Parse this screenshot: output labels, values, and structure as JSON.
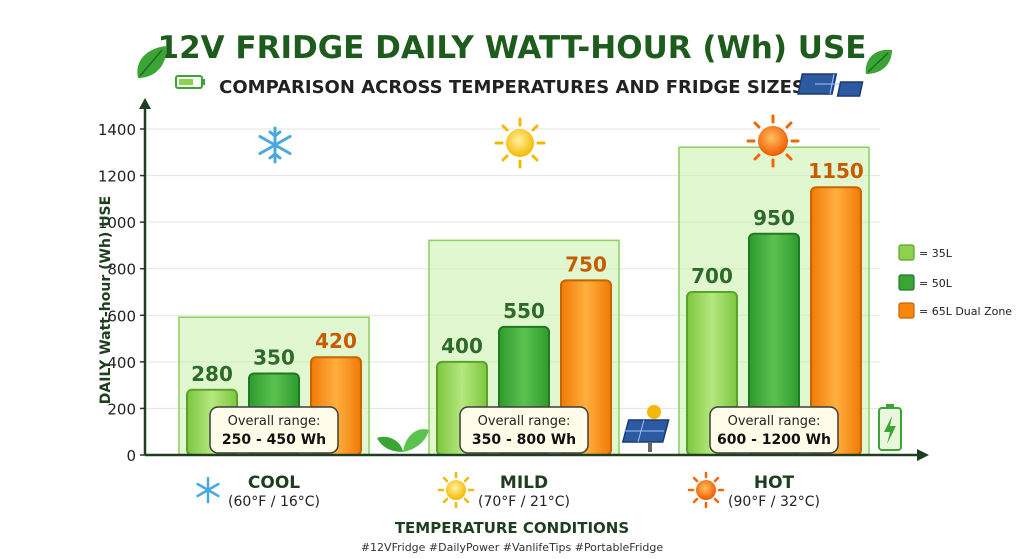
{
  "chart_data": {
    "type": "bar",
    "title": "12V FRIDGE DAILY WATT-HOUR (Wh) USE",
    "subtitle": "COMPARISON ACROSS TEMPERATURES AND FRIDGE SIZES",
    "ylabel": "DAILY Watt-hour (Wh) USE",
    "xlabel": "TEMPERATURE CONDITIONS",
    "ylim": [
      0,
      1400
    ],
    "yticks": [
      "0",
      "200",
      "400",
      "600",
      "800",
      "1000",
      "1200",
      "1400"
    ],
    "grid": true,
    "legend_position": "right",
    "categories": [
      {
        "name": "COOL",
        "temp": "(60°F / 16°C)",
        "icon": "snowflake-icon",
        "range_label": "Overall range:",
        "range_value": "250 - 450 Wh",
        "range": [
          250,
          450
        ]
      },
      {
        "name": "MILD",
        "temp": "(70°F / 21°C)",
        "icon": "sun-icon",
        "range_label": "Overall range:",
        "range_value": "350 - 800 Wh",
        "range": [
          350,
          800
        ]
      },
      {
        "name": "HOT",
        "temp": "(90°F / 32°C)",
        "icon": "hot-sun-icon",
        "range_label": "Overall range:",
        "range_value": "600 - 1200 Wh",
        "range": [
          600,
          1200
        ]
      }
    ],
    "series": [
      {
        "name": "= 35L",
        "color": "#8fd14f",
        "values": [
          280,
          400,
          700
        ],
        "labels": [
          "280",
          "400",
          "700"
        ]
      },
      {
        "name": "= 50L",
        "color": "#3aa535",
        "values": [
          350,
          550,
          950
        ],
        "labels": [
          "350",
          "550",
          "950"
        ]
      },
      {
        "name": "= 65L Dual Zone",
        "color": "#f7860f",
        "values": [
          420,
          750,
          1150
        ],
        "labels": [
          "420",
          "750",
          "1150"
        ]
      }
    ]
  },
  "hashtags": "#12VFridge  #DailyPower #VanlifeTips #PortableFridge",
  "colors": {
    "title": "#1e5c1e",
    "axis": "#1f3d1f",
    "label_green": "#2e6b2a",
    "label_orange": "#c85a00",
    "range_box": "#c9f0a8",
    "range_stroke": "#8ccf60"
  }
}
